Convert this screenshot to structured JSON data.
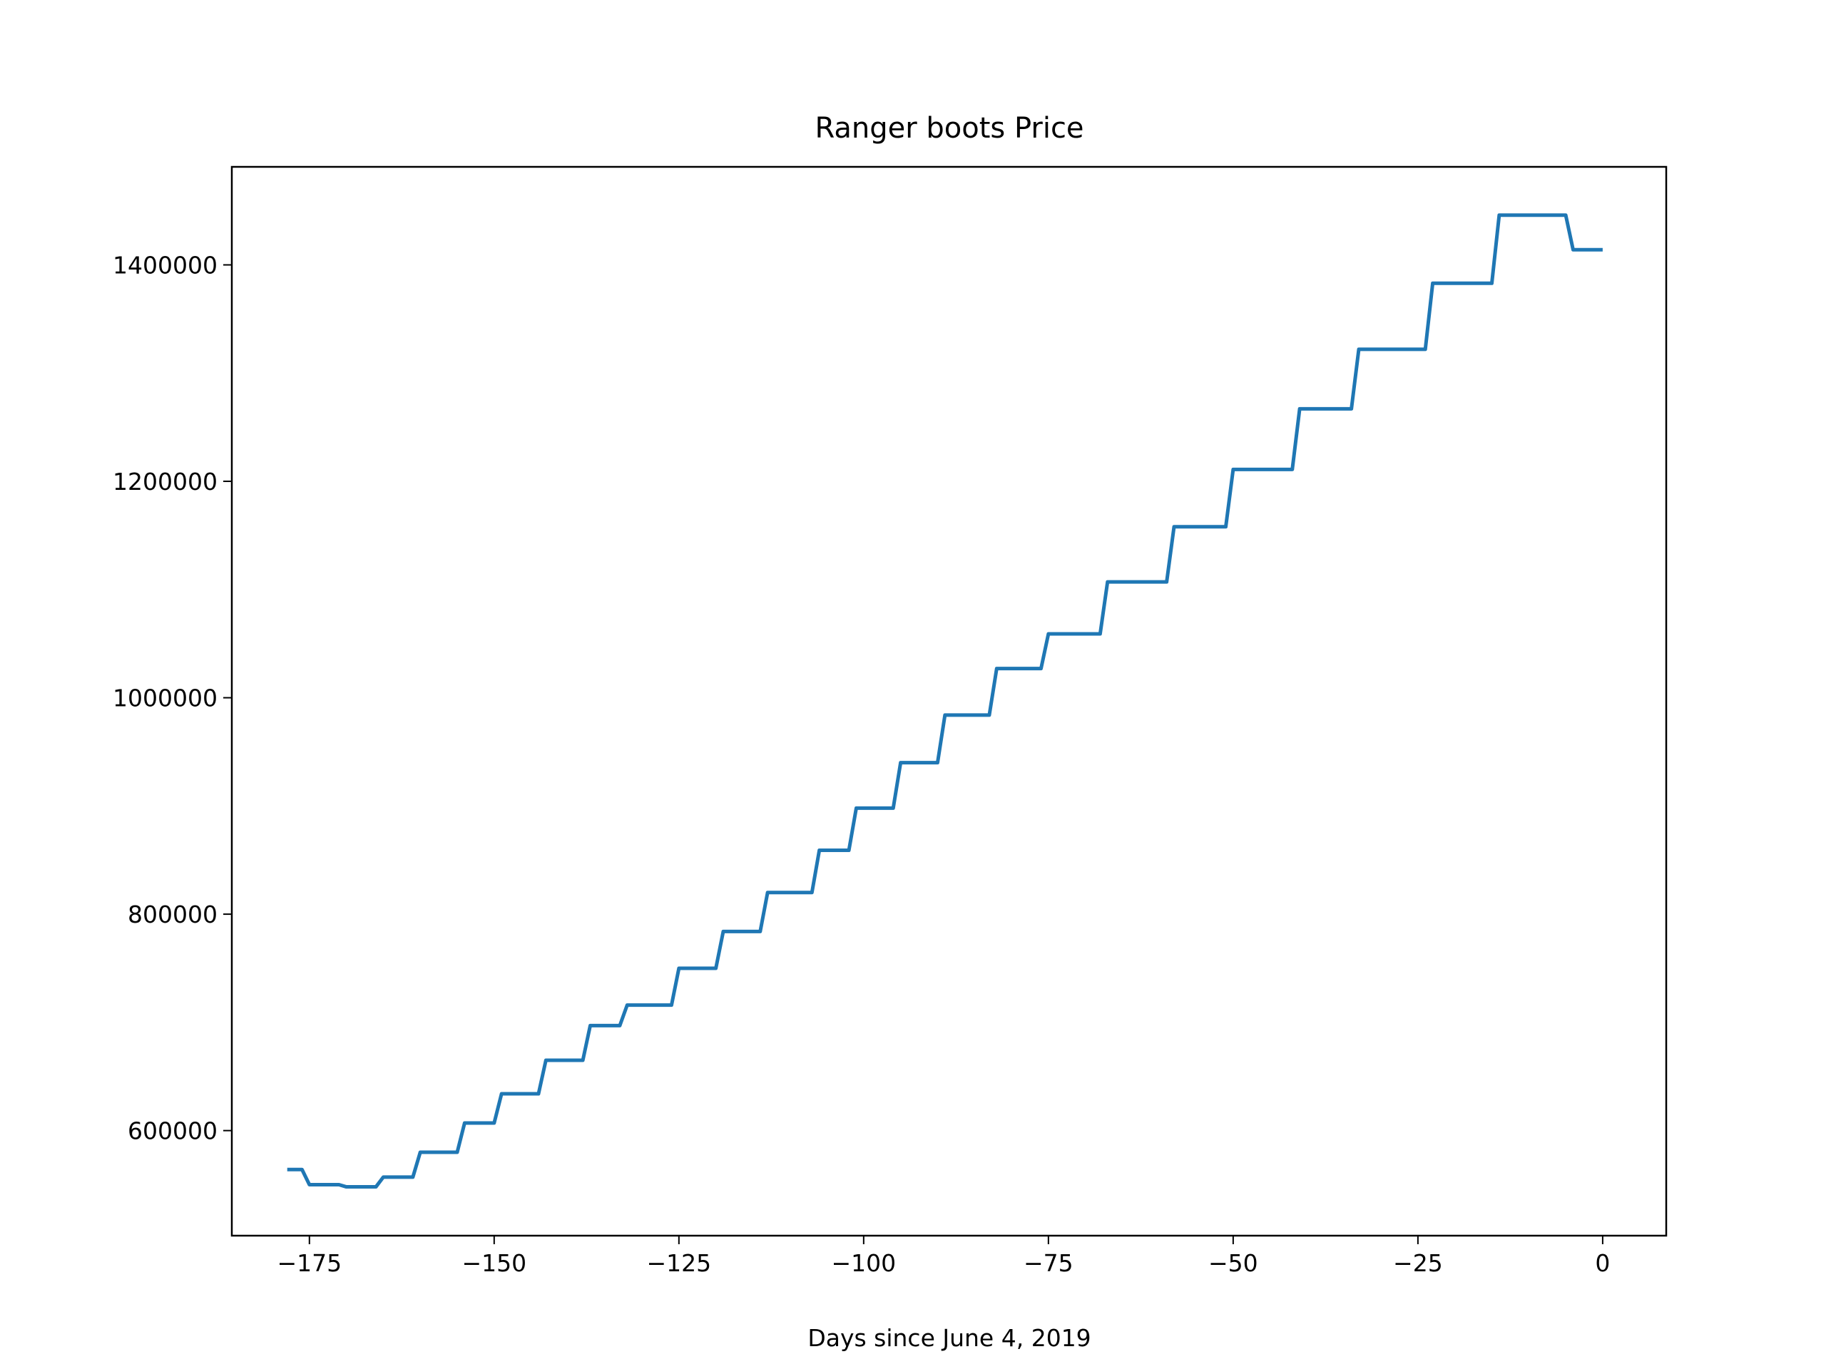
{
  "chart_data": {
    "type": "line",
    "title": "Ranger boots Price",
    "x_label": "Days since June 4, 2019",
    "x": [
      -178,
      -176,
      -175,
      -171,
      -170,
      -166,
      -165,
      -161,
      -160,
      -155,
      -154,
      -150,
      -149,
      -144,
      -143,
      -138,
      -137,
      -133,
      -132,
      -126,
      -125,
      -120,
      -119,
      -114,
      -113,
      -107,
      -106,
      -102,
      -101,
      -96,
      -95,
      -90,
      -89,
      -83,
      -82,
      -76,
      -75,
      -68,
      -67,
      -59,
      -58,
      -51,
      -50,
      -42,
      -41,
      -34,
      -33,
      -24,
      -23,
      -15,
      -14,
      -5,
      -4,
      0
    ],
    "series": [
      {
        "color": "#1f77b4",
        "values": [
          564000,
          564000,
          550000,
          550000,
          548000,
          548000,
          557000,
          557000,
          580000,
          580000,
          607000,
          607000,
          634000,
          634000,
          665000,
          665000,
          697000,
          697000,
          716000,
          716000,
          750000,
          750000,
          784000,
          784000,
          820000,
          820000,
          859000,
          859000,
          898000,
          898000,
          940000,
          940000,
          984000,
          984000,
          1027000,
          1027000,
          1059000,
          1059000,
          1107000,
          1107000,
          1158000,
          1158000,
          1211000,
          1211000,
          1267000,
          1267000,
          1322000,
          1322000,
          1383000,
          1383000,
          1446000,
          1446000,
          1414000,
          1414000
        ]
      }
    ],
    "xlim": [
      -185.5,
      8.6
    ],
    "ylim": [
      502900,
      1490600
    ],
    "xticks": [
      {
        "value": -175,
        "label": "−175"
      },
      {
        "value": -150,
        "label": "−150"
      },
      {
        "value": -125,
        "label": "−125"
      },
      {
        "value": -100,
        "label": "−100"
      },
      {
        "value": -75,
        "label": "−75"
      },
      {
        "value": -50,
        "label": "−50"
      },
      {
        "value": -25,
        "label": "−25"
      },
      0
    ],
    "yticks": [
      600000,
      800000,
      1000000,
      1200000,
      1400000
    ]
  }
}
